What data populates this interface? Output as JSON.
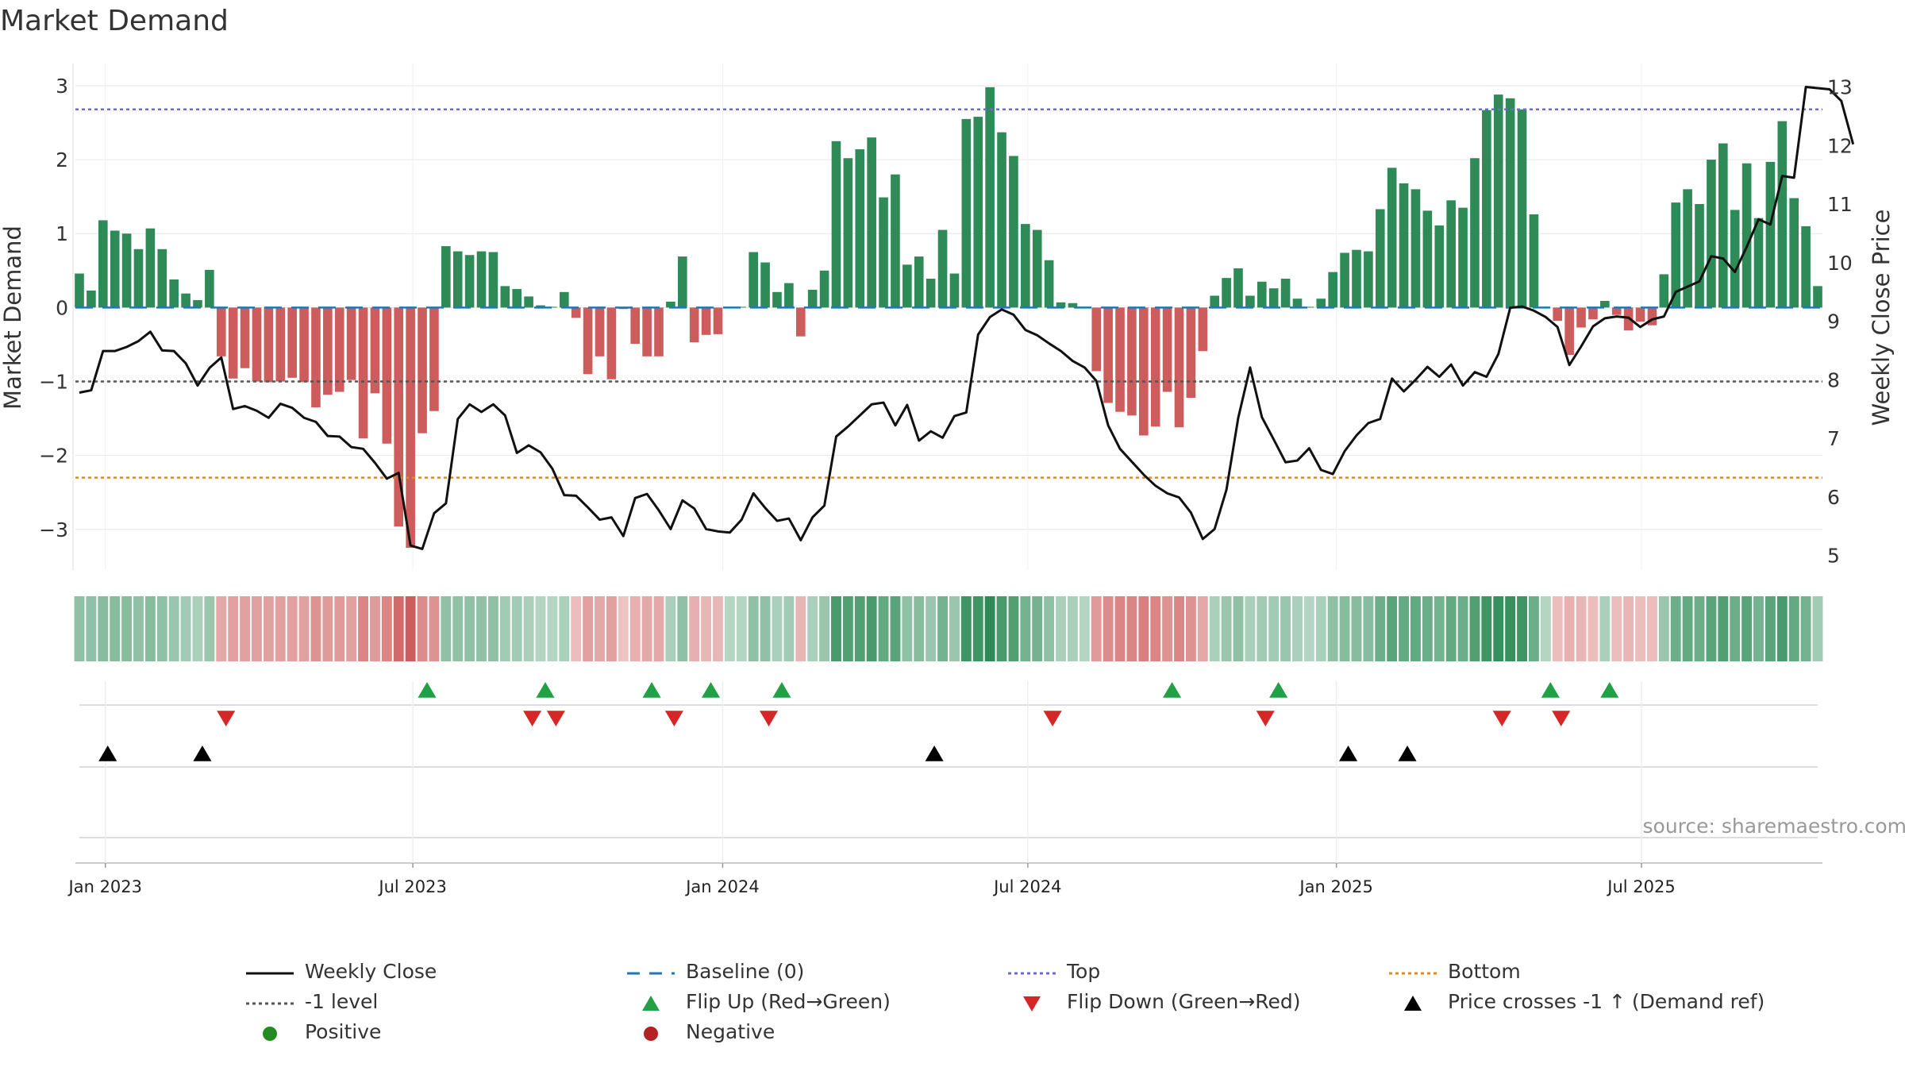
{
  "title": "Market Demand",
  "source": "source: sharemaestro.com",
  "colors": {
    "green": "#2e8b57",
    "red": "#cd5c5c",
    "line": "#111111",
    "baseline": "#1f77b4",
    "top": "#6b6bd6",
    "bottom": "#e08a1e",
    "minus1": "#555555",
    "flip_up": "#22a045",
    "flip_down": "#d62728",
    "cross": "#000000",
    "positive": "#228b22",
    "negative": "#b22222",
    "grid": "#e6e6e6"
  },
  "chart_data": {
    "type": "bar+line",
    "ylabel_left": "Market Demand",
    "ylabel_right": "Weekly Close Price",
    "left_ylim": [
      -3.55,
      3.3
    ],
    "right_ylim": [
      4.75,
      13.4
    ],
    "left_ticks": [
      3,
      2,
      1,
      0,
      -1,
      -2,
      -3
    ],
    "left_tick_labels": [
      "3",
      "2",
      "1",
      "0",
      "−1",
      "−2",
      "−3"
    ],
    "right_ticks": [
      13,
      12,
      11,
      10,
      9,
      8,
      7,
      6,
      5
    ],
    "right_tick_labels": [
      "13",
      "12",
      "11",
      "10",
      "9",
      "8",
      "7",
      "6",
      "5"
    ],
    "x_tick_labels": [
      "Jan 2023",
      "Jul 2023",
      "Jan 2024",
      "Jul 2024",
      "Jan 2025",
      "Jul 2025"
    ],
    "x_tick_weeks": [
      2.2,
      28.2,
      54.4,
      80.2,
      106.3,
      132.1
    ],
    "reference_lines": {
      "top": 2.68,
      "bottom": -2.3,
      "minus1": -1.0,
      "baseline": 0
    },
    "demand": [
      0.46,
      0.23,
      1.18,
      1.04,
      1.0,
      0.79,
      1.07,
      0.79,
      0.38,
      0.19,
      0.1,
      0.51,
      -0.66,
      -0.96,
      -0.82,
      -1.0,
      -1.01,
      -1.0,
      -0.95,
      -1.01,
      -1.35,
      -1.18,
      -1.14,
      -0.98,
      -1.77,
      -1.16,
      -1.84,
      -2.96,
      -3.25,
      -1.7,
      -1.4,
      0.83,
      0.76,
      0.71,
      0.76,
      0.75,
      0.29,
      0.25,
      0.15,
      0.03,
      0.01,
      0.21,
      -0.14,
      -0.9,
      -0.66,
      -0.97,
      -0.02,
      -0.49,
      -0.66,
      -0.66,
      0.08,
      0.69,
      -0.47,
      -0.37,
      -0.36,
      0.01,
      0.01,
      0.75,
      0.61,
      0.21,
      0.33,
      -0.39,
      0.24,
      0.5,
      2.25,
      2.02,
      2.14,
      2.3,
      1.49,
      1.8,
      0.58,
      0.69,
      0.39,
      1.05,
      0.46,
      2.55,
      2.58,
      2.98,
      2.37,
      2.05,
      1.13,
      1.05,
      0.64,
      0.07,
      0.06,
      0.01,
      -0.86,
      -1.29,
      -1.41,
      -1.46,
      -1.73,
      -1.61,
      -1.14,
      -1.62,
      -1.22,
      -0.59,
      0.16,
      0.4,
      0.53,
      0.16,
      0.35,
      0.26,
      0.39,
      0.12,
      0.01,
      0.12,
      0.48,
      0.74,
      0.78,
      0.76,
      1.33,
      1.89,
      1.68,
      1.6,
      1.31,
      1.11,
      1.45,
      1.35,
      2.02,
      2.67,
      2.88,
      2.83,
      2.68,
      1.26,
      0.01,
      -0.18,
      -0.64,
      -0.27,
      -0.16,
      0.09,
      -0.1,
      -0.31,
      -0.19,
      -0.24,
      0.45,
      1.42,
      1.6,
      1.4,
      2.0,
      2.22,
      1.32,
      1.95,
      1.21,
      1.97,
      2.52,
      1.48,
      1.1,
      0.29
    ],
    "close": [
      7.78,
      7.82,
      8.49,
      8.49,
      8.56,
      8.66,
      8.82,
      8.5,
      8.49,
      8.28,
      7.9,
      8.2,
      8.38,
      7.5,
      7.55,
      7.47,
      7.35,
      7.59,
      7.52,
      7.35,
      7.28,
      7.04,
      7.03,
      6.85,
      6.82,
      6.58,
      6.31,
      6.41,
      5.17,
      5.11,
      5.72,
      5.89,
      7.33,
      7.58,
      7.45,
      7.58,
      7.39,
      6.75,
      6.88,
      6.76,
      6.48,
      6.03,
      6.02,
      5.82,
      5.61,
      5.65,
      5.33,
      5.98,
      6.05,
      5.77,
      5.45,
      5.94,
      5.8,
      5.45,
      5.41,
      5.39,
      5.61,
      6.06,
      5.81,
      5.59,
      5.63,
      5.26,
      5.65,
      5.85,
      7.03,
      7.2,
      7.39,
      7.58,
      7.61,
      7.22,
      7.57,
      6.96,
      7.12,
      7.01,
      7.38,
      7.44,
      8.77,
      9.07,
      9.2,
      9.11,
      8.85,
      8.76,
      8.62,
      8.49,
      8.32,
      8.21,
      7.98,
      7.22,
      6.82,
      6.6,
      6.38,
      6.19,
      6.06,
      5.99,
      5.73,
      5.28,
      5.45,
      6.12,
      7.35,
      8.21,
      7.36,
      6.98,
      6.59,
      6.62,
      6.83,
      6.46,
      6.39,
      6.78,
      7.05,
      7.26,
      7.33,
      8.02,
      7.8,
      8.0,
      8.22,
      8.05,
      8.26,
      7.9,
      8.13,
      8.05,
      8.44,
      9.23,
      9.25,
      9.18,
      9.07,
      8.9,
      8.25,
      8.57,
      8.91,
      9.05,
      9.08,
      9.06,
      8.9,
      9.03,
      9.08,
      9.5,
      9.59,
      9.68,
      10.11,
      10.07,
      9.84,
      10.27,
      10.74,
      10.65,
      11.48,
      11.45,
      13.0,
      12.98,
      12.96,
      12.76,
      12.02
    ],
    "shade_intensity": [
      0.45,
      0.45,
      0.5,
      0.5,
      0.5,
      0.45,
      0.5,
      0.45,
      0.4,
      0.35,
      0.3,
      0.4,
      0.45,
      0.5,
      0.5,
      0.5,
      0.5,
      0.5,
      0.5,
      0.5,
      0.6,
      0.55,
      0.55,
      0.5,
      0.7,
      0.55,
      0.7,
      0.9,
      1.0,
      0.65,
      0.6,
      0.45,
      0.45,
      0.45,
      0.45,
      0.45,
      0.35,
      0.35,
      0.3,
      0.25,
      0.25,
      0.3,
      0.3,
      0.5,
      0.45,
      0.5,
      0.25,
      0.4,
      0.45,
      0.45,
      0.3,
      0.45,
      0.4,
      0.35,
      0.35,
      0.25,
      0.25,
      0.45,
      0.45,
      0.3,
      0.35,
      0.35,
      0.3,
      0.4,
      0.85,
      0.8,
      0.8,
      0.85,
      0.7,
      0.75,
      0.45,
      0.5,
      0.4,
      0.6,
      0.4,
      0.9,
      0.9,
      1.0,
      0.85,
      0.8,
      0.6,
      0.6,
      0.45,
      0.3,
      0.3,
      0.25,
      0.55,
      0.65,
      0.7,
      0.7,
      0.75,
      0.7,
      0.6,
      0.7,
      0.6,
      0.45,
      0.3,
      0.4,
      0.45,
      0.3,
      0.35,
      0.35,
      0.4,
      0.3,
      0.25,
      0.3,
      0.45,
      0.5,
      0.5,
      0.5,
      0.65,
      0.75,
      0.7,
      0.7,
      0.65,
      0.6,
      0.7,
      0.65,
      0.8,
      0.9,
      0.95,
      0.95,
      0.9,
      0.65,
      0.25,
      0.3,
      0.4,
      0.35,
      0.3,
      0.3,
      0.3,
      0.35,
      0.3,
      0.3,
      0.4,
      0.65,
      0.7,
      0.65,
      0.75,
      0.8,
      0.65,
      0.75,
      0.6,
      0.75,
      0.85,
      0.7,
      0.6,
      0.35
    ],
    "flip_up_weeks": [
      29.4,
      39.4,
      48.4,
      53.4,
      59.4,
      92.4,
      101.4,
      124.4,
      129.4
    ],
    "flip_down_weeks": [
      12.4,
      38.3,
      40.3,
      50.3,
      58.3,
      82.3,
      100.3,
      120.3,
      125.3
    ],
    "price_cross_weeks": [
      2.4,
      10.4,
      72.3,
      107.3,
      112.3
    ]
  },
  "legend": [
    {
      "key": "weekly_close",
      "label": "Weekly Close"
    },
    {
      "key": "baseline",
      "label": "Baseline (0)"
    },
    {
      "key": "top",
      "label": "Top"
    },
    {
      "key": "bottom",
      "label": "Bottom"
    },
    {
      "key": "minus1",
      "label": "-1 level"
    },
    {
      "key": "flip_up",
      "label": "Flip Up (Red→Green)"
    },
    {
      "key": "flip_down",
      "label": "Flip Down (Green→Red)"
    },
    {
      "key": "price_cross",
      "label": "Price crosses -1 ↑ (Demand ref)"
    },
    {
      "key": "positive",
      "label": "Positive"
    },
    {
      "key": "negative",
      "label": "Negative"
    }
  ]
}
